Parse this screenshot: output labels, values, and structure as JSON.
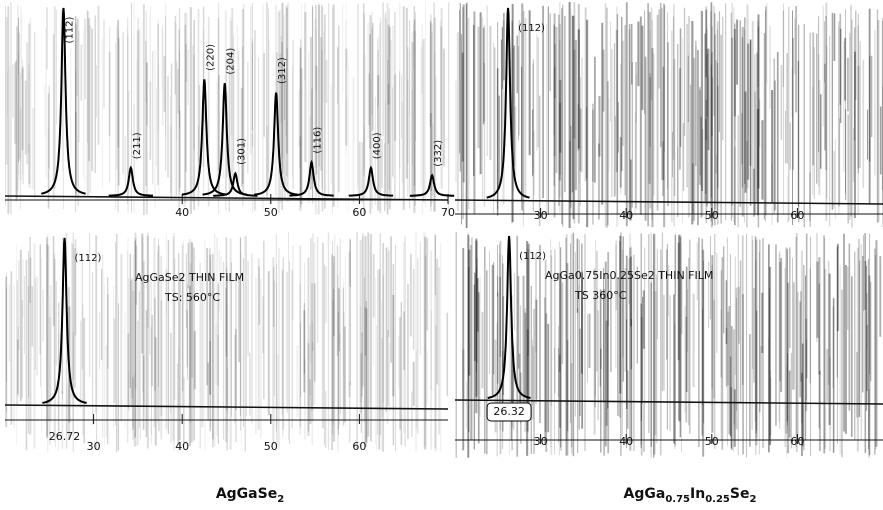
{
  "chart_data": [
    {
      "type": "xrd",
      "xlim": [
        20,
        70
      ],
      "ylim": [
        0,
        100
      ],
      "xticks": [
        40,
        50,
        60,
        70
      ],
      "peaks": [
        {
          "label": "(112)",
          "x": 26.6,
          "height": 100
        },
        {
          "label": "(211)",
          "x": 34.2,
          "height": 15
        },
        {
          "label": "(220)",
          "x": 42.5,
          "height": 62
        },
        {
          "label": "(204)",
          "x": 44.8,
          "height": 60
        },
        {
          "label": "(301)",
          "x": 46.0,
          "height": 12
        },
        {
          "label": "(312)",
          "x": 50.6,
          "height": 55
        },
        {
          "label": "(116)",
          "x": 54.6,
          "height": 18
        },
        {
          "label": "(400)",
          "x": 61.3,
          "height": 15
        },
        {
          "label": "(332)",
          "x": 68.2,
          "height": 11
        }
      ]
    },
    {
      "type": "xrd",
      "xlim": [
        20,
        70
      ],
      "ylim": [
        0,
        100
      ],
      "xticks": [
        30,
        40,
        50,
        60
      ],
      "annotations": [
        "AgGaSe2 THIN FILM",
        "TS: 560°C"
      ],
      "peaks": [
        {
          "label": "(112)",
          "x": 26.72,
          "height": 100
        }
      ]
    },
    {
      "type": "xrd",
      "xlim": [
        20,
        70
      ],
      "ylim": [
        0,
        100
      ],
      "xticks": [
        30,
        40,
        50,
        60
      ],
      "peaks": [
        {
          "label": "(112)",
          "x": 26.2,
          "height": 100
        }
      ]
    },
    {
      "type": "xrd",
      "xlim": [
        20,
        70
      ],
      "ylim": [
        0,
        100
      ],
      "xticks": [
        30,
        40,
        50,
        60
      ],
      "annotations": [
        "AgGa0.75In0.25Se2 THIN FILM",
        "TS 360°C"
      ],
      "peaks": [
        {
          "label": "(112)",
          "x": 26.32,
          "height": 100
        }
      ]
    }
  ],
  "captions": [
    [
      {
        "text": "AgGaSe"
      },
      {
        "text": "2",
        "sub": true
      }
    ],
    [
      {
        "text": "AgGa"
      },
      {
        "text": "0.75",
        "sub": true
      },
      {
        "text": "In"
      },
      {
        "text": "0.25",
        "sub": true
      },
      {
        "text": "Se"
      },
      {
        "text": "2",
        "sub": true
      }
    ]
  ]
}
